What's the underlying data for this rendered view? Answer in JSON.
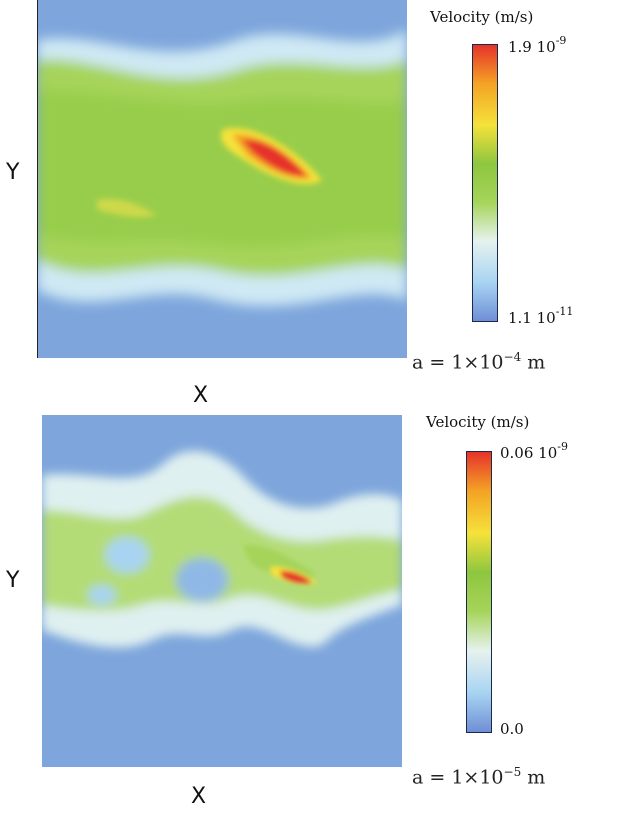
{
  "chart_data": [
    {
      "type": "heatmap",
      "title": "",
      "xlabel": "X",
      "ylabel": "Y",
      "colorbar": {
        "title": "Velocity (m/s)",
        "max_label": "1.9 10",
        "max_exp": "-9",
        "min_label": "1.1 10",
        "min_exp": "-11",
        "max_value": 1.9e-09,
        "min_value": 1.1e-11,
        "colormap": [
          "#6f8fd6",
          "#a8d4f2",
          "#e6f2ee",
          "#a6d45a",
          "#8ec63f",
          "#f5e23a",
          "#f4a325",
          "#e6332a"
        ]
      },
      "annotation": {
        "text": "a = 1×10",
        "exp": "−4",
        "unit": " m"
      },
      "description": "flow band concentrated across center with a high-velocity streak right of center"
    },
    {
      "type": "heatmap",
      "title": "",
      "xlabel": "X",
      "ylabel": "Y",
      "colorbar": {
        "title": "Velocity (m/s)",
        "max_label": "0.06 10",
        "max_exp": "-9",
        "min_label": "0.0",
        "min_exp": "",
        "max_value": 6e-11,
        "min_value": 0.0,
        "colormap": [
          "#6f8fd6",
          "#a8d4f2",
          "#e6f2ee",
          "#a6d45a",
          "#8ec63f",
          "#f5e23a",
          "#f4a325",
          "#e6332a"
        ]
      },
      "annotation": {
        "text": "a = 1×10",
        "exp": "−5",
        "unit": " m"
      },
      "description": "irregular porous flow region in center with small high-velocity spot"
    }
  ]
}
